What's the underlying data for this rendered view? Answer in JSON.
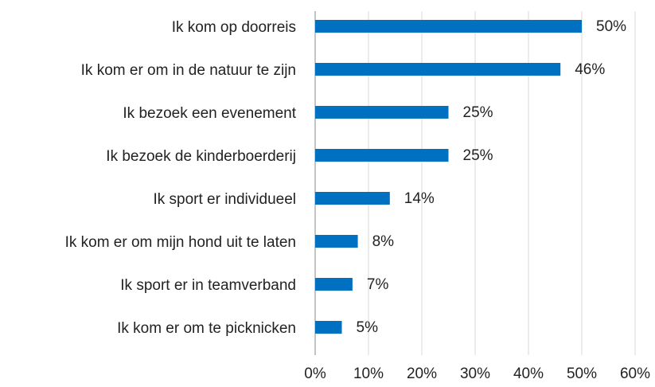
{
  "chart_data": {
    "type": "bar",
    "orientation": "horizontal",
    "categories": [
      "Ik kom op doorreis",
      "Ik kom er om in de natuur te zijn",
      "Ik bezoek een evenement",
      "Ik bezoek de kinderboerderij",
      "Ik sport er individueel",
      "Ik kom er om mijn hond uit te laten",
      "Ik sport er in teamverband",
      "Ik kom er om te picknicken"
    ],
    "values": [
      50,
      46,
      25,
      25,
      14,
      8,
      7,
      5
    ],
    "value_labels": [
      "50%",
      "46%",
      "25%",
      "25%",
      "14%",
      "8%",
      "7%",
      "5%"
    ],
    "color": "#0070c0",
    "xlim": [
      0,
      60
    ],
    "xticks": [
      {
        "value": 0,
        "label": "0%"
      },
      {
        "value": 10,
        "label": "10%"
      },
      {
        "value": 20,
        "label": "20%"
      },
      {
        "value": 30,
        "label": "30%"
      },
      {
        "value": 40,
        "label": "40%"
      },
      {
        "value": 50,
        "label": "50%"
      },
      {
        "value": 60,
        "label": "60%"
      }
    ],
    "grid": true
  }
}
